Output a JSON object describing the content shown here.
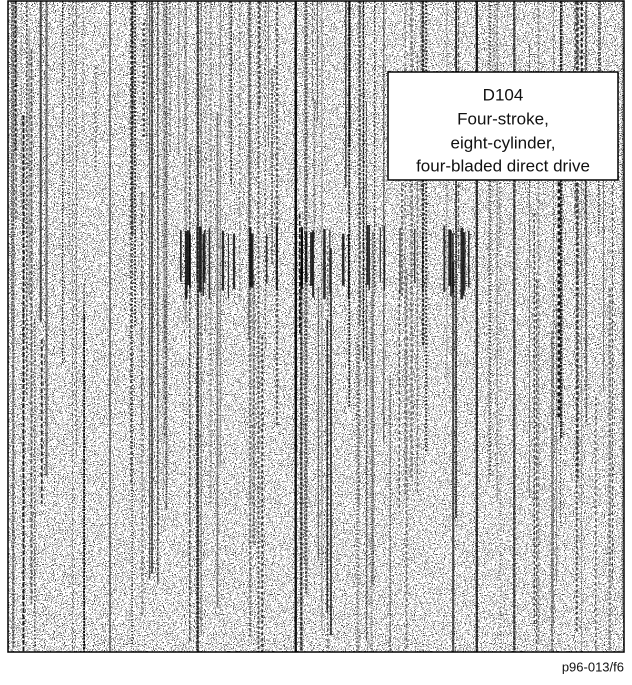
{
  "label": {
    "lines": [
      "D104",
      "Four-stroke,",
      "eight-cylinder,",
      "four-bladed direct drive"
    ]
  },
  "caption": "p96-013/f6"
}
